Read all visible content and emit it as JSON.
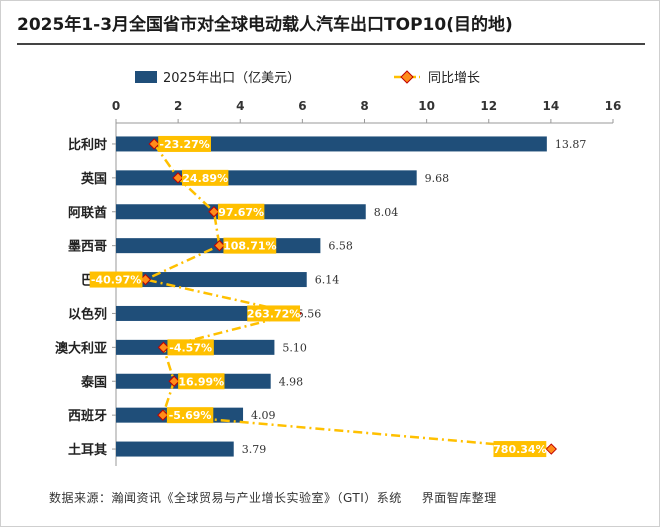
{
  "title": "2025年1-3月全国省市对全球电动载人汽车出口TOP10(目的地)",
  "source": "数据来源：瀚闻资讯《全球贸易与产业增长实验室》（GTI）系统",
  "credit": "界面智库整理",
  "colors": {
    "bar": "#1f4e79",
    "line": "#ffc000",
    "marker_fill": "#ff8c1a",
    "marker_stroke": "#c00000",
    "label_bg": "#ffc000",
    "label_text": "#ffffff"
  },
  "chart_data": {
    "type": "bar",
    "orientation": "horizontal",
    "categories": [
      "比利时",
      "英国",
      "阿联酋",
      "墨西哥",
      "巴西",
      "以色列",
      "澳大利亚",
      "泰国",
      "西班牙",
      "土耳其"
    ],
    "series": [
      {
        "name": "2025年出口（亿美元）",
        "kind": "bar",
        "values": [
          13.87,
          9.68,
          8.04,
          6.58,
          6.14,
          5.56,
          5.1,
          4.98,
          4.09,
          3.79
        ],
        "labels": [
          "13.87",
          "9.68",
          "8.04",
          "6.58",
          "6.14",
          "5.56",
          "5.10",
          "4.98",
          "4.09",
          "3.79"
        ]
      },
      {
        "name": "同比增长",
        "kind": "line",
        "values": [
          -23.27,
          24.89,
          97.67,
          108.71,
          -40.97,
          263.72,
          -4.57,
          16.99,
          -5.69,
          780.34
        ],
        "labels": [
          "-23.27%",
          "24.89%",
          "97.67%",
          "108.71%",
          "-40.97%",
          "263.72%",
          "-4.57%",
          "16.99%",
          "-5.69%",
          "780.34%"
        ]
      }
    ],
    "x_ticks": [
      "0",
      "2",
      "4",
      "6",
      "8",
      "10",
      "12",
      "14",
      "16"
    ],
    "xlim": [
      0,
      16
    ],
    "legend_position": "top",
    "grid": false
  }
}
